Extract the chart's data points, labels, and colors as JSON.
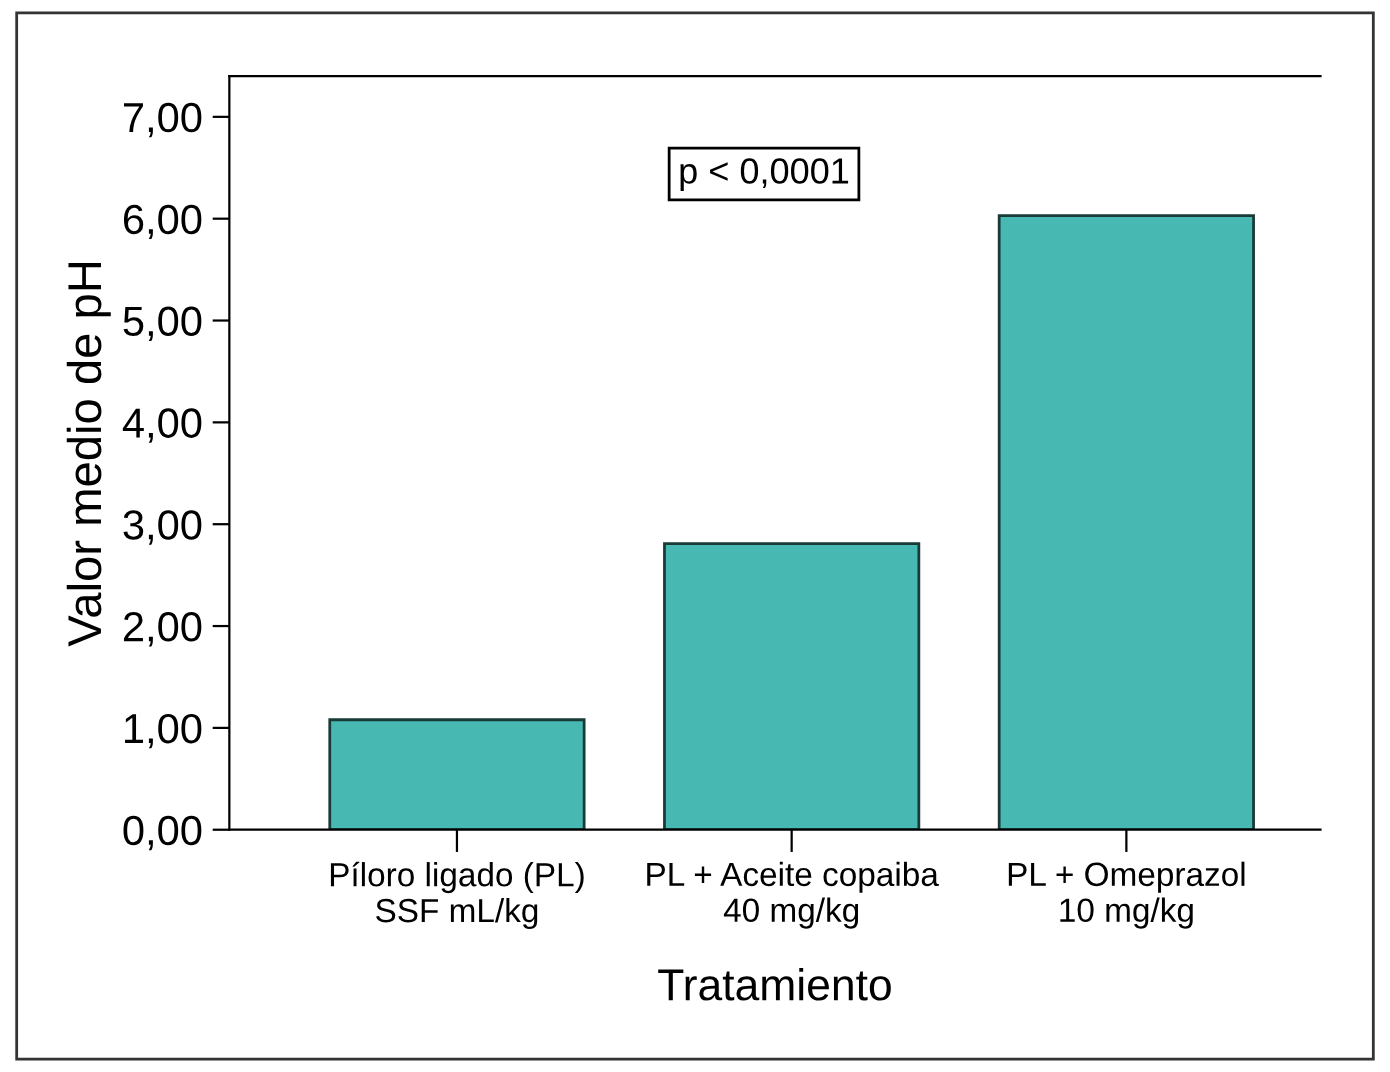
{
  "chart_data": {
    "type": "bar",
    "xlabel": "Tratamiento",
    "ylabel": "Valor medio de pH",
    "categories": [
      "Píloro ligado (PL)\nSSF mL/kg",
      "PL + Aceite copaiba\n40 mg/kg",
      "PL + Omeprazol\n10 mg/kg"
    ],
    "values": [
      1.08,
      2.81,
      6.03
    ],
    "color": "#48b8b3",
    "ylim": [
      0,
      7.4
    ],
    "yticks": [
      {
        "value": 0,
        "label": "0,00"
      },
      {
        "value": 1,
        "label": "1,00"
      },
      {
        "value": 2,
        "label": "2,00"
      },
      {
        "value": 3,
        "label": "3,00"
      },
      {
        "value": 4,
        "label": "4,00"
      },
      {
        "value": 5,
        "label": "5,00"
      },
      {
        "value": 6,
        "label": "6,00"
      },
      {
        "value": 7,
        "label": "7,00"
      }
    ],
    "annotations": [
      "p < 0,0001"
    ],
    "grid": false,
    "legend": false
  }
}
